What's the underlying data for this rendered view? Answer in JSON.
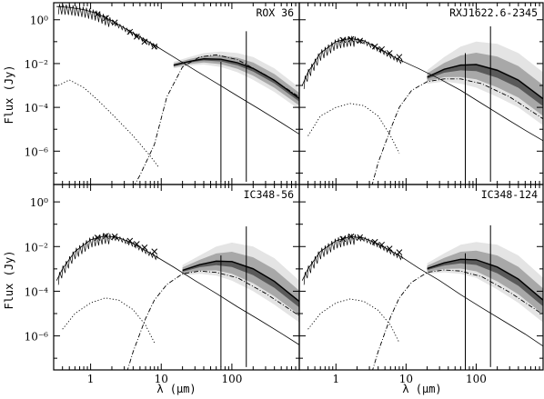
{
  "chart_data": [
    {
      "type": "line",
      "title": "ROX 36",
      "xlabel": "λ (μm)",
      "ylabel": "Flux (Jy)",
      "xscale": "log",
      "yscale": "log",
      "xlim": [
        0.3,
        900
      ],
      "ylim": [
        3e-08,
        6
      ],
      "photometry": {
        "x": [
          1.25,
          1.65,
          2.2,
          3.6,
          4.5,
          5.8,
          8.0
        ],
        "y": [
          1.8,
          1.2,
          0.75,
          0.28,
          0.17,
          0.1,
          0.06
        ]
      },
      "photosphere": {
        "x": [
          0.33,
          0.5,
          0.8,
          1.2,
          2,
          4,
          8,
          15,
          30,
          60,
          120,
          250,
          500,
          900
        ],
        "y": [
          4.0,
          3.7,
          2.9,
          2.0,
          0.9,
          0.25,
          0.07,
          0.02,
          0.005,
          0.0013,
          0.00033,
          8e-05,
          2e-05,
          6e-06
        ]
      },
      "scattered": {
        "x": [
          0.35,
          0.5,
          0.8,
          1.2,
          2,
          4,
          7,
          9
        ],
        "y": [
          0.001,
          0.0018,
          0.0008,
          0.00025,
          5e-05,
          5e-06,
          6e-07,
          2e-07
        ]
      },
      "disk": {
        "x": [
          3.5,
          5,
          8,
          12,
          20,
          35,
          60,
          120,
          300,
          900
        ],
        "y": [
          1e-08,
          8e-08,
          2e-06,
          0.0003,
          0.007,
          0.02,
          0.025,
          0.015,
          0.003,
          0.0003
        ]
      },
      "band": {
        "x": [
          15,
          25,
          40,
          70,
          120,
          200,
          400,
          900
        ],
        "lo": [
          0.006,
          0.008,
          0.009,
          0.007,
          0.004,
          0.0018,
          0.0005,
          8e-05
        ],
        "hi": [
          0.012,
          0.02,
          0.03,
          0.035,
          0.03,
          0.02,
          0.006,
          0.0008
        ]
      },
      "upper_limits": [
        {
          "x": 70,
          "ylo": 4e-08,
          "yhi": 0.012
        },
        {
          "x": 160,
          "ylo": 4e-08,
          "yhi": 0.3
        }
      ]
    },
    {
      "type": "line",
      "title": "RXJ1622.6-2345",
      "xlabel": "λ (μm)",
      "ylabel": "Flux (Jy)",
      "xscale": "log",
      "yscale": "log",
      "xlim": [
        0.3,
        900
      ],
      "ylim": [
        3e-08,
        6
      ],
      "photometry": {
        "x": [
          1.25,
          1.65,
          2.2,
          3.6,
          4.5,
          5.8,
          8.0
        ],
        "y": [
          0.12,
          0.13,
          0.11,
          0.06,
          0.045,
          0.03,
          0.02
        ]
      },
      "photosphere": {
        "x": [
          0.33,
          0.4,
          0.6,
          1.0,
          1.6,
          2.5,
          4,
          8,
          15,
          30,
          60,
          120,
          250,
          500,
          900
        ],
        "y": [
          0.001,
          0.004,
          0.03,
          0.1,
          0.14,
          0.11,
          0.05,
          0.015,
          0.006,
          0.002,
          0.0006,
          0.00015,
          3.5e-05,
          9e-06,
          3e-06
        ]
      },
      "scattered": {
        "x": [
          0.4,
          0.6,
          1.0,
          1.6,
          2.5,
          4,
          6,
          8
        ],
        "y": [
          5e-06,
          4e-05,
          0.0001,
          0.00015,
          0.00012,
          4e-05,
          5e-06,
          8e-07
        ]
      },
      "disk": {
        "x": [
          3,
          4,
          6,
          8,
          12,
          20,
          35,
          60,
          120,
          300,
          900
        ],
        "y": [
          1e-08,
          3e-07,
          1e-05,
          0.0001,
          0.0006,
          0.0015,
          0.002,
          0.002,
          0.0012,
          0.0003,
          3e-05
        ]
      },
      "band": {
        "x": [
          20,
          35,
          60,
          100,
          200,
          400,
          900
        ],
        "lo": [
          0.0012,
          0.0015,
          0.0012,
          0.0008,
          0.0003,
          0.0001,
          1.5e-05
        ],
        "hi": [
          0.005,
          0.02,
          0.06,
          0.1,
          0.08,
          0.03,
          0.004
        ]
      },
      "upper_limits": [
        {
          "x": 70,
          "ylo": 4e-08,
          "yhi": 0.03
        },
        {
          "x": 160,
          "ylo": 4e-08,
          "yhi": 0.5
        }
      ]
    },
    {
      "type": "line",
      "title": "IC348-56",
      "xlabel": "λ (μm)",
      "ylabel": "Flux (Jy)",
      "xscale": "log",
      "yscale": "log",
      "xlim": [
        0.3,
        900
      ],
      "ylim": [
        3e-08,
        6
      ],
      "photometry": {
        "x": [
          1.25,
          1.65,
          2.2,
          3.6,
          4.5,
          5.8,
          8.0
        ],
        "y": [
          0.025,
          0.03,
          0.028,
          0.018,
          0.013,
          0.009,
          0.006
        ]
      },
      "photosphere": {
        "x": [
          0.33,
          0.4,
          0.6,
          1.0,
          1.6,
          2.5,
          4,
          8,
          15,
          30,
          60,
          120,
          250,
          500,
          900
        ],
        "y": [
          0.0003,
          0.001,
          0.006,
          0.02,
          0.03,
          0.025,
          0.014,
          0.004,
          0.0012,
          0.0003,
          8e-05,
          2e-05,
          5e-06,
          1.3e-06,
          4e-07
        ]
      },
      "scattered": {
        "x": [
          0.4,
          0.6,
          1.0,
          1.6,
          2.5,
          4,
          6,
          8
        ],
        "y": [
          2e-06,
          1e-05,
          3e-05,
          5e-05,
          4e-05,
          1.5e-05,
          3e-06,
          5e-07
        ]
      },
      "disk": {
        "x": [
          3,
          4,
          6,
          8,
          12,
          20,
          35,
          60,
          120,
          300,
          900
        ],
        "y": [
          1e-08,
          2e-07,
          6e-06,
          4e-05,
          0.0002,
          0.0006,
          0.0008,
          0.0007,
          0.0004,
          8e-05,
          8e-06
        ]
      },
      "band": {
        "x": [
          20,
          35,
          60,
          100,
          200,
          400,
          900
        ],
        "lo": [
          0.0005,
          0.0006,
          0.0005,
          0.0003,
          0.0001,
          2.5e-05,
          4e-06
        ],
        "hi": [
          0.0015,
          0.004,
          0.01,
          0.015,
          0.01,
          0.003,
          0.0003
        ]
      },
      "upper_limits": [
        {
          "x": 70,
          "ylo": 4e-08,
          "yhi": 0.004
        },
        {
          "x": 160,
          "ylo": 4e-08,
          "yhi": 0.08
        }
      ]
    },
    {
      "type": "line",
      "title": "IC348-124",
      "xlabel": "λ (μm)",
      "ylabel": "Flux (Jy)",
      "xscale": "log",
      "yscale": "log",
      "xlim": [
        0.3,
        900
      ],
      "ylim": [
        3e-08,
        6
      ],
      "photometry": {
        "x": [
          1.25,
          1.65,
          2.2,
          3.6,
          4.5,
          5.8,
          8.0
        ],
        "y": [
          0.022,
          0.028,
          0.026,
          0.016,
          0.012,
          0.008,
          0.0055
        ]
      },
      "photosphere": {
        "x": [
          0.33,
          0.4,
          0.6,
          1.0,
          1.6,
          2.5,
          4,
          8,
          15,
          30,
          60,
          120,
          250,
          500,
          900
        ],
        "y": [
          0.0003,
          0.001,
          0.006,
          0.018,
          0.028,
          0.024,
          0.013,
          0.004,
          0.0011,
          0.0003,
          7e-05,
          1.8e-05,
          4.5e-06,
          1.2e-06,
          3.5e-07
        ]
      },
      "scattered": {
        "x": [
          0.4,
          0.6,
          1.0,
          1.6,
          2.5,
          4,
          6,
          8
        ],
        "y": [
          2e-06,
          1e-05,
          3e-05,
          4.5e-05,
          3.5e-05,
          1.4e-05,
          3e-06,
          5e-07
        ]
      },
      "disk": {
        "x": [
          3,
          4,
          6,
          8,
          12,
          20,
          35,
          60,
          120,
          300,
          900
        ],
        "y": [
          1e-08,
          2e-07,
          7e-06,
          5e-05,
          0.00025,
          0.0007,
          0.0009,
          0.0008,
          0.00045,
          9e-05,
          9e-06
        ]
      },
      "band": {
        "x": [
          20,
          35,
          60,
          100,
          200,
          400,
          900
        ],
        "lo": [
          0.0006,
          0.0007,
          0.0006,
          0.0004,
          0.00012,
          3e-05,
          4e-06
        ],
        "hi": [
          0.0018,
          0.005,
          0.012,
          0.016,
          0.012,
          0.004,
          0.0004
        ]
      },
      "upper_limits": [
        {
          "x": 70,
          "ylo": 4e-08,
          "yhi": 0.005
        },
        {
          "x": 160,
          "ylo": 4e-08,
          "yhi": 0.09
        }
      ]
    }
  ],
  "x_ticks": [
    {
      "v": 1,
      "label": "1"
    },
    {
      "v": 10,
      "label": "10"
    },
    {
      "v": 100,
      "label": "100"
    }
  ],
  "y_ticks": [
    {
      "v": 1,
      "label": "10⁰"
    },
    {
      "v": 0.01,
      "label": "10⁻²"
    },
    {
      "v": 0.0001,
      "label": "10⁻⁴"
    },
    {
      "v": 1e-06,
      "label": "10⁻⁶"
    }
  ],
  "colors": {
    "band_outer": "#e4e4e4",
    "band_mid": "#a8a8a8",
    "band_inner": "#5a5a5a",
    "line": "#000000"
  }
}
